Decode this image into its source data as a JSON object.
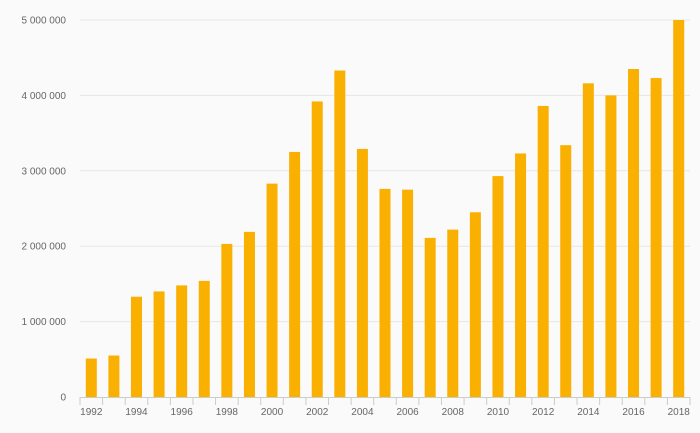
{
  "chart_data": {
    "type": "bar",
    "title": "",
    "xlabel": "",
    "ylabel": "",
    "categories": [
      "1992",
      "1993",
      "1994",
      "1995",
      "1996",
      "1997",
      "1998",
      "1999",
      "2000",
      "2001",
      "2002",
      "2003",
      "2004",
      "2005",
      "2006",
      "2007",
      "2008",
      "2009",
      "2010",
      "2011",
      "2012",
      "2013",
      "2014",
      "2015",
      "2016",
      "2017",
      "2018"
    ],
    "values": [
      510000,
      550000,
      1330000,
      1400000,
      1480000,
      1540000,
      2030000,
      2190000,
      2830000,
      3250000,
      3920000,
      4330000,
      3290000,
      2760000,
      2750000,
      2110000,
      2220000,
      2450000,
      2930000,
      3230000,
      3860000,
      3340000,
      4160000,
      4000000,
      4350000,
      4230000,
      5000000
    ],
    "x_tick_labels": [
      "1992",
      "1994",
      "1996",
      "1998",
      "2000",
      "2002",
      "2004",
      "2006",
      "2008",
      "2010",
      "2012",
      "2014",
      "2016",
      "2018"
    ],
    "y_ticks": [
      0,
      1000000,
      2000000,
      3000000,
      4000000,
      5000000
    ],
    "y_tick_labels": [
      "0",
      "1 000 000",
      "2 000 000",
      "3 000 000",
      "4 000 000",
      "5 000 000"
    ],
    "ylim": [
      0,
      5000000
    ],
    "grid": true,
    "bar_color": "#f9b000",
    "legend": "none"
  }
}
